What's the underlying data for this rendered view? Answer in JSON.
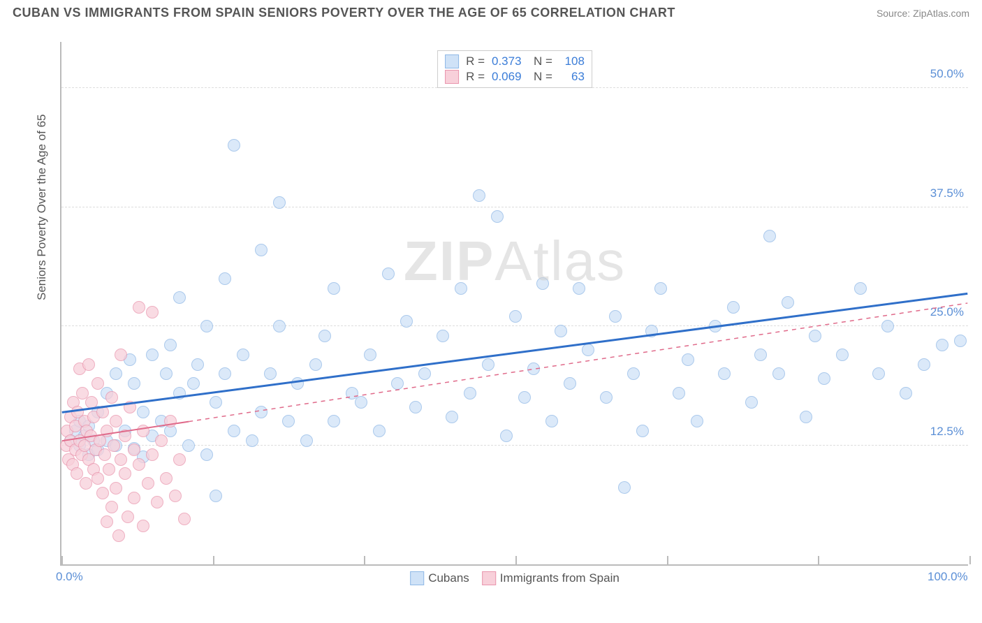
{
  "header": {
    "title": "CUBAN VS IMMIGRANTS FROM SPAIN SENIORS POVERTY OVER THE AGE OF 65 CORRELATION CHART",
    "source": "Source: ZipAtlas.com"
  },
  "watermark": {
    "bold": "ZIP",
    "rest": "Atlas"
  },
  "chart": {
    "type": "scatter",
    "ylabel": "Seniors Poverty Over the Age of 65",
    "xlim": [
      0,
      100
    ],
    "ylim": [
      0,
      55
    ],
    "yticks": [
      {
        "v": 12.5,
        "label": "12.5%"
      },
      {
        "v": 25.0,
        "label": "25.0%"
      },
      {
        "v": 37.5,
        "label": "37.5%"
      },
      {
        "v": 50.0,
        "label": "50.0%"
      }
    ],
    "xticks": [
      {
        "v": 0,
        "label": "0.0%"
      },
      {
        "v": 16.67,
        "label": ""
      },
      {
        "v": 33.33,
        "label": ""
      },
      {
        "v": 50.0,
        "label": ""
      },
      {
        "v": 66.67,
        "label": ""
      },
      {
        "v": 83.33,
        "label": ""
      },
      {
        "v": 100,
        "label": "100.0%"
      }
    ],
    "background_color": "#ffffff",
    "grid_color": "#dddddd",
    "marker_radius": 9,
    "marker_stroke_width": 1.5,
    "series": [
      {
        "name": "Cubans",
        "fill": "#cfe2f7",
        "stroke": "#8fb8e6",
        "fill_opacity": 0.75,
        "stats": {
          "R": "0.373",
          "N": "108"
        },
        "trend": {
          "x1": 0,
          "y1": 16.0,
          "x2": 100,
          "y2": 28.5,
          "solid_until_x": 100,
          "color": "#2f6fc9",
          "width": 3
        },
        "points": [
          [
            1,
            13
          ],
          [
            1.5,
            14
          ],
          [
            2,
            12.5
          ],
          [
            2,
            15
          ],
          [
            2.5,
            13.5
          ],
          [
            3,
            11.5
          ],
          [
            3,
            14.5
          ],
          [
            3.5,
            13
          ],
          [
            4,
            12
          ],
          [
            4,
            16
          ],
          [
            5,
            13
          ],
          [
            5,
            18
          ],
          [
            6,
            12.5
          ],
          [
            6,
            20
          ],
          [
            7,
            14
          ],
          [
            7.5,
            21.5
          ],
          [
            8,
            12.2
          ],
          [
            8,
            19
          ],
          [
            9,
            11.3
          ],
          [
            9,
            16
          ],
          [
            10,
            13.5
          ],
          [
            10,
            22
          ],
          [
            11,
            15
          ],
          [
            11.5,
            20
          ],
          [
            12,
            14
          ],
          [
            12,
            23
          ],
          [
            13,
            18
          ],
          [
            13,
            28
          ],
          [
            14,
            12.5
          ],
          [
            14.5,
            19
          ],
          [
            15,
            21
          ],
          [
            16,
            11.5
          ],
          [
            16,
            25
          ],
          [
            17,
            17
          ],
          [
            17,
            7.2
          ],
          [
            18,
            20
          ],
          [
            18,
            30
          ],
          [
            19,
            14
          ],
          [
            19,
            44
          ],
          [
            20,
            22
          ],
          [
            21,
            13
          ],
          [
            22,
            16
          ],
          [
            22,
            33
          ],
          [
            23,
            20
          ],
          [
            24,
            25
          ],
          [
            24,
            38
          ],
          [
            25,
            15
          ],
          [
            26,
            19
          ],
          [
            27,
            13
          ],
          [
            28,
            21
          ],
          [
            29,
            24
          ],
          [
            30,
            15
          ],
          [
            30,
            29
          ],
          [
            32,
            18
          ],
          [
            33,
            17
          ],
          [
            34,
            22
          ],
          [
            35,
            14
          ],
          [
            36,
            30.5
          ],
          [
            37,
            19
          ],
          [
            38,
            25.5
          ],
          [
            39,
            16.5
          ],
          [
            40,
            20
          ],
          [
            42,
            24
          ],
          [
            43,
            15.5
          ],
          [
            44,
            29
          ],
          [
            45,
            18
          ],
          [
            46,
            38.7
          ],
          [
            47,
            21
          ],
          [
            48,
            36.5
          ],
          [
            49,
            13.5
          ],
          [
            50,
            26
          ],
          [
            51,
            17.5
          ],
          [
            52,
            20.5
          ],
          [
            53,
            29.5
          ],
          [
            54,
            15
          ],
          [
            55,
            24.5
          ],
          [
            56,
            19
          ],
          [
            57,
            29
          ],
          [
            58,
            22.5
          ],
          [
            60,
            17.5
          ],
          [
            61,
            26
          ],
          [
            62,
            8.1
          ],
          [
            63,
            20
          ],
          [
            64,
            14
          ],
          [
            65,
            24.5
          ],
          [
            66,
            29
          ],
          [
            68,
            18
          ],
          [
            69,
            21.5
          ],
          [
            70,
            15
          ],
          [
            72,
            25
          ],
          [
            73,
            20
          ],
          [
            74,
            27
          ],
          [
            76,
            17
          ],
          [
            77,
            22
          ],
          [
            78,
            34.5
          ],
          [
            79,
            20
          ],
          [
            80,
            27.5
          ],
          [
            82,
            15.5
          ],
          [
            83,
            24
          ],
          [
            84,
            19.5
          ],
          [
            86,
            22
          ],
          [
            88,
            29
          ],
          [
            90,
            20
          ],
          [
            91,
            25
          ],
          [
            93,
            18
          ],
          [
            95,
            21
          ],
          [
            97,
            23
          ],
          [
            99,
            23.5
          ]
        ]
      },
      {
        "name": "Immigrants from Spain",
        "fill": "#f8d0da",
        "stroke": "#e995ad",
        "fill_opacity": 0.75,
        "stats": {
          "R": "0.069",
          "N": "63"
        },
        "trend": {
          "x1": 0,
          "y1": 13.0,
          "x2": 100,
          "y2": 27.5,
          "solid_until_x": 14,
          "color": "#e06a8a",
          "width": 2
        },
        "points": [
          [
            0.5,
            12.5
          ],
          [
            0.6,
            14
          ],
          [
            0.8,
            11
          ],
          [
            1,
            13
          ],
          [
            1,
            15.5
          ],
          [
            1.2,
            10.5
          ],
          [
            1.3,
            17
          ],
          [
            1.5,
            12
          ],
          [
            1.5,
            14.5
          ],
          [
            1.7,
            9.5
          ],
          [
            1.8,
            16
          ],
          [
            2,
            13
          ],
          [
            2,
            20.5
          ],
          [
            2.2,
            11.5
          ],
          [
            2.3,
            18
          ],
          [
            2.5,
            12.5
          ],
          [
            2.5,
            15
          ],
          [
            2.7,
            8.5
          ],
          [
            2.8,
            14
          ],
          [
            3,
            11
          ],
          [
            3,
            21
          ],
          [
            3.2,
            13.5
          ],
          [
            3.3,
            17
          ],
          [
            3.5,
            10
          ],
          [
            3.5,
            15.5
          ],
          [
            3.8,
            12
          ],
          [
            4,
            9
          ],
          [
            4,
            19
          ],
          [
            4.2,
            13
          ],
          [
            4.5,
            7.5
          ],
          [
            4.5,
            16
          ],
          [
            4.8,
            11.5
          ],
          [
            5,
            14
          ],
          [
            5,
            4.5
          ],
          [
            5.2,
            10
          ],
          [
            5.5,
            17.5
          ],
          [
            5.5,
            6
          ],
          [
            5.8,
            12.5
          ],
          [
            6,
            8
          ],
          [
            6,
            15
          ],
          [
            6.3,
            3
          ],
          [
            6.5,
            11
          ],
          [
            6.5,
            22
          ],
          [
            7,
            9.5
          ],
          [
            7,
            13.5
          ],
          [
            7.3,
            5
          ],
          [
            7.5,
            16.5
          ],
          [
            8,
            7
          ],
          [
            8,
            12
          ],
          [
            8.5,
            27
          ],
          [
            8.5,
            10.5
          ],
          [
            9,
            14
          ],
          [
            9,
            4
          ],
          [
            9.5,
            8.5
          ],
          [
            10,
            11.5
          ],
          [
            10,
            26.5
          ],
          [
            10.5,
            6.5
          ],
          [
            11,
            13
          ],
          [
            11.5,
            9
          ],
          [
            12,
            15
          ],
          [
            12.5,
            7.2
          ],
          [
            13,
            11
          ],
          [
            13.5,
            4.8
          ]
        ]
      }
    ],
    "legend_bottom": [
      {
        "label": "Cubans",
        "fill": "#cfe2f7",
        "stroke": "#8fb8e6"
      },
      {
        "label": "Immigrants from Spain",
        "fill": "#f8d0da",
        "stroke": "#e995ad"
      }
    ]
  }
}
